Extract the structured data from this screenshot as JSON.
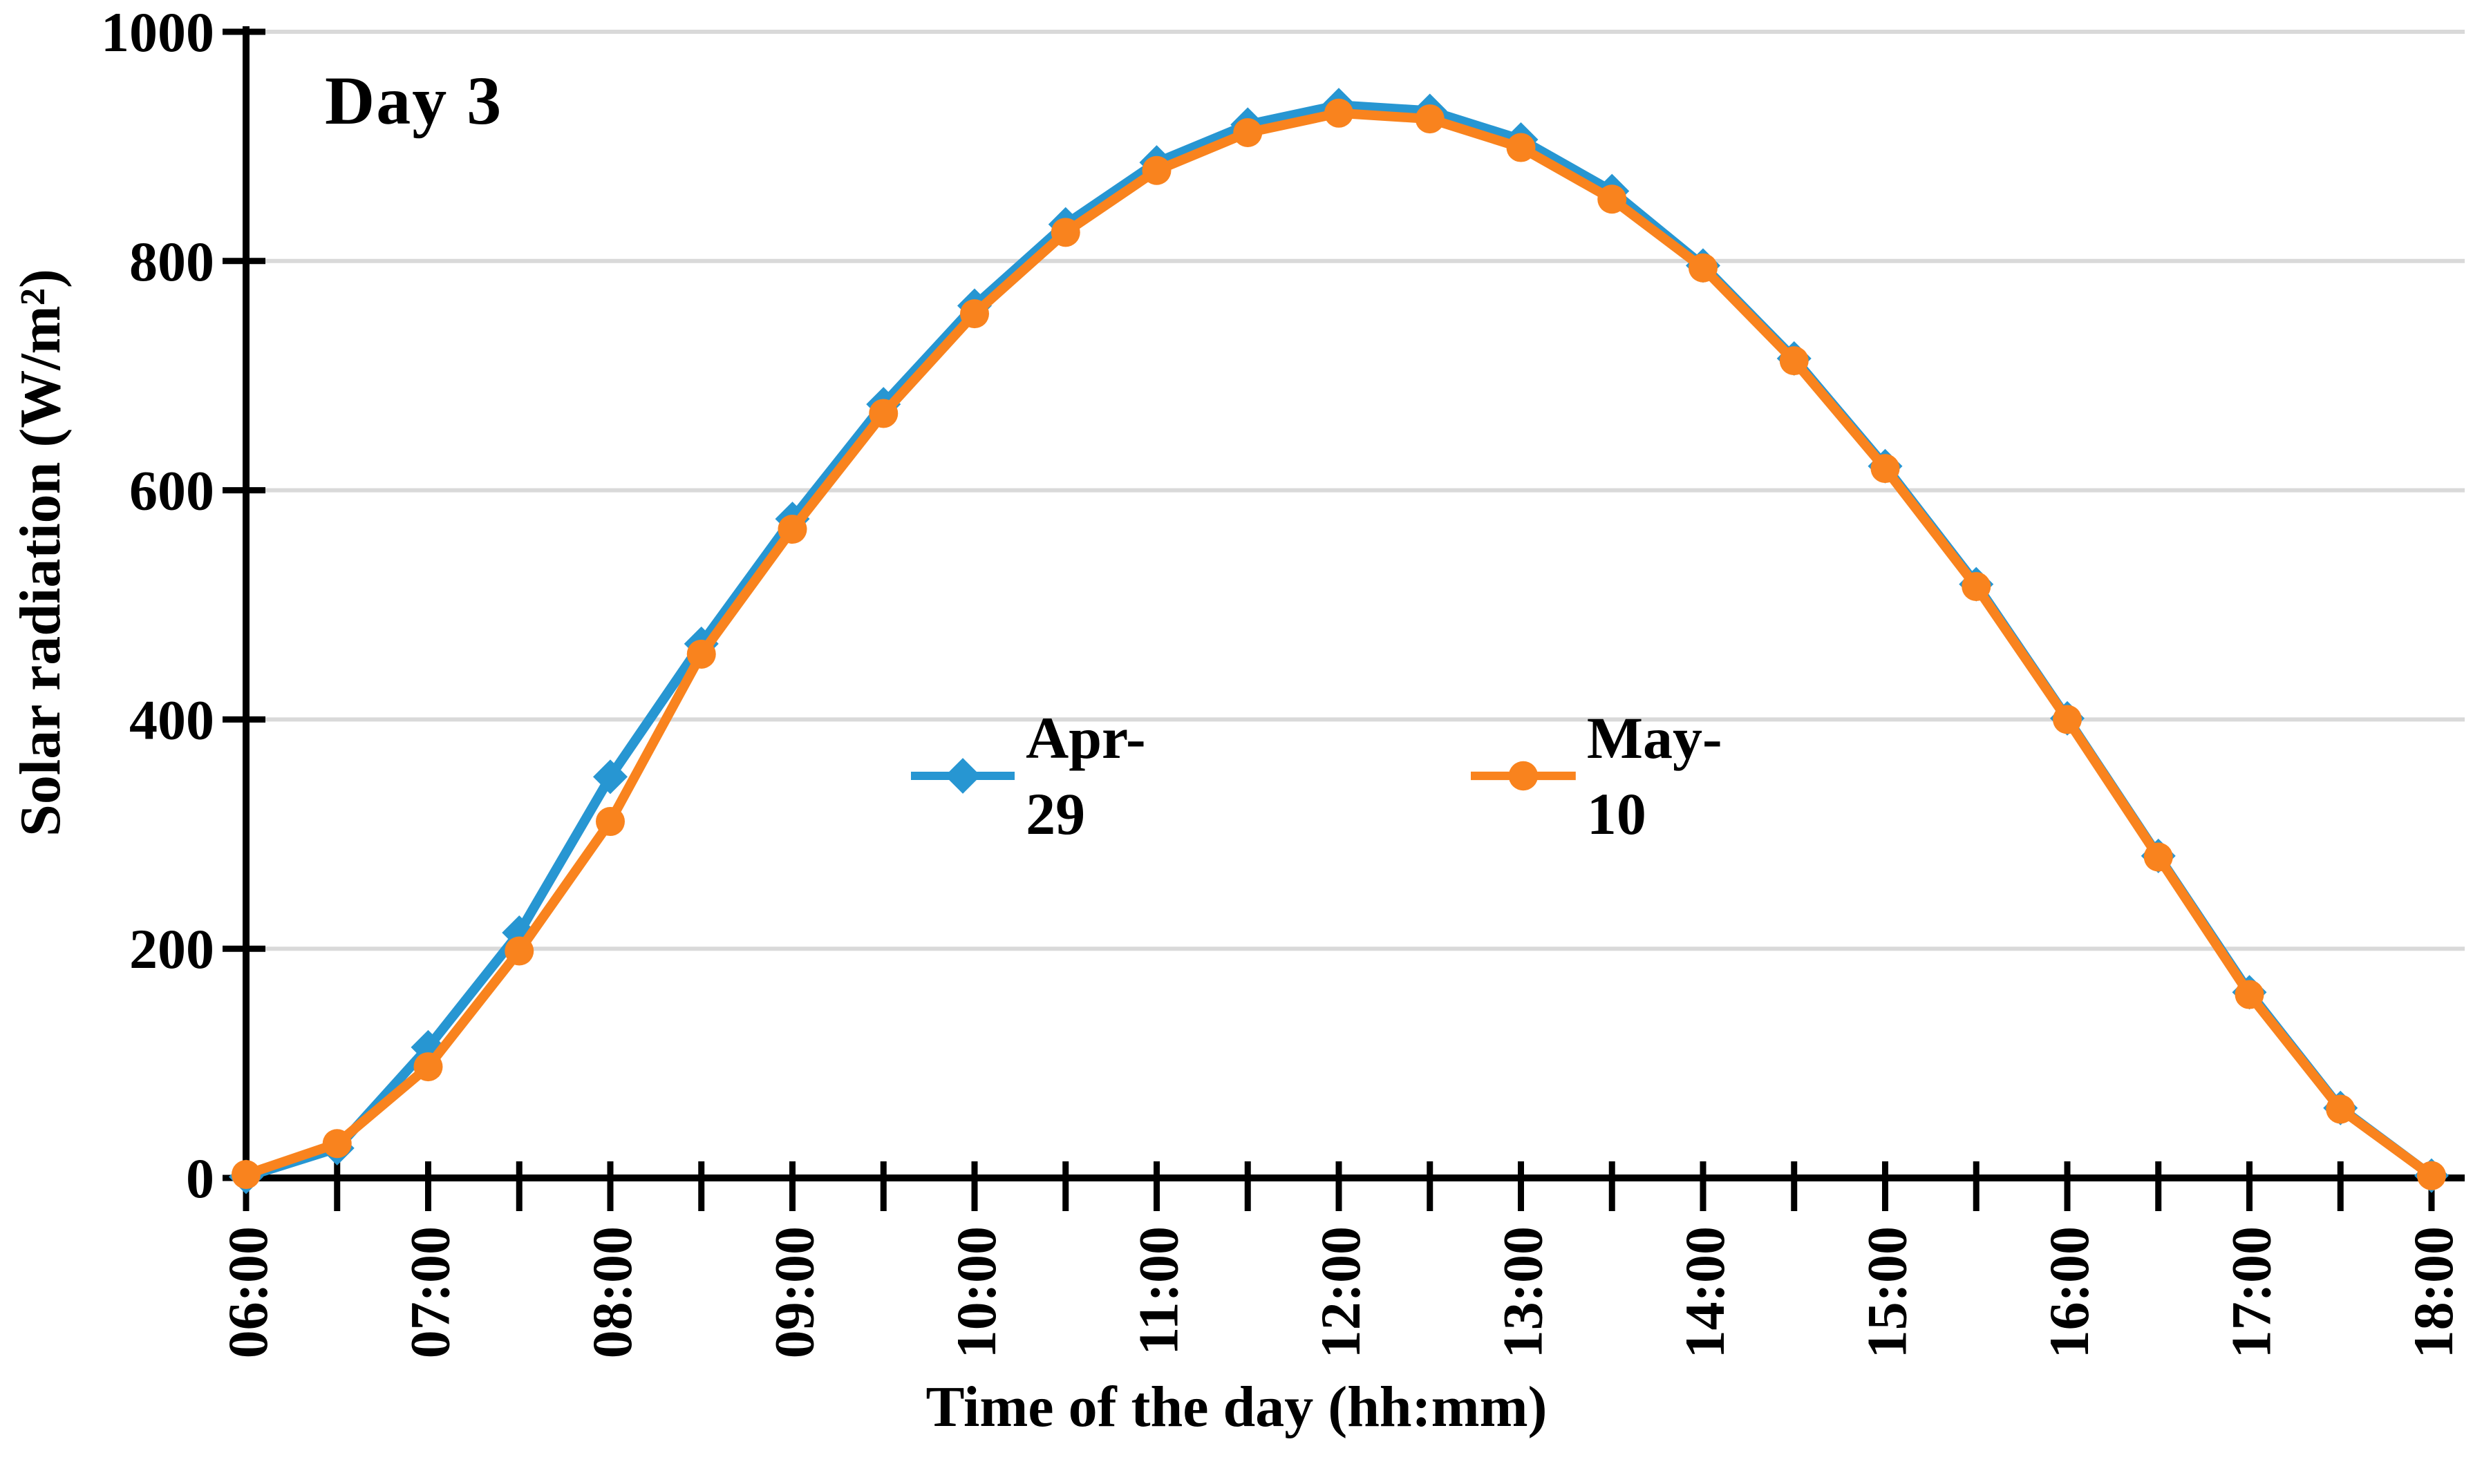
{
  "chart_data": {
    "type": "line",
    "title": "Day 3",
    "xlabel": "Time of the day (hh:mm)",
    "ylabel": "Solar radiation (W/m²)",
    "ylim": [
      0,
      1000
    ],
    "yticks": [
      0,
      200,
      400,
      600,
      800,
      1000
    ],
    "grid": "horizontal-only",
    "legend_position": "inside-center",
    "x": [
      "06:00",
      "06:30",
      "07:00",
      "07:30",
      "08:00",
      "08:30",
      "09:00",
      "09:30",
      "10:00",
      "10:30",
      "11:00",
      "11:30",
      "12:00",
      "12:30",
      "13:00",
      "13:30",
      "14:00",
      "14:30",
      "15:00",
      "15:30",
      "16:00",
      "16:30",
      "17:00",
      "17:30",
      "18:00"
    ],
    "x_major_ticklabels": [
      "06:00",
      "07:00",
      "08:00",
      "09:00",
      "10:00",
      "11:00",
      "12:00",
      "13:00",
      "14:00",
      "15:00",
      "16:00",
      "17:00",
      "18:00"
    ],
    "series": [
      {
        "name": "Apr-29",
        "color": "#2796D2",
        "marker": "diamond",
        "values": [
          1,
          26,
          114,
          214,
          350,
          466,
          575,
          675,
          761,
          832,
          886,
          919,
          936,
          931,
          906,
          861,
          796,
          715,
          621,
          518,
          401,
          281,
          162,
          61,
          2
        ]
      },
      {
        "name": "May-10",
        "color": "#F9831E",
        "marker": "circle",
        "values": [
          3,
          30,
          97,
          198,
          311,
          457,
          566,
          667,
          754,
          825,
          879,
          912,
          929,
          924,
          899,
          854,
          794,
          713,
          619,
          516,
          400,
          280,
          160,
          60,
          2
        ]
      }
    ],
    "axis_color": "#000000",
    "gridline_color": "#D9D9D9",
    "background_color": "#FFFFFF"
  }
}
